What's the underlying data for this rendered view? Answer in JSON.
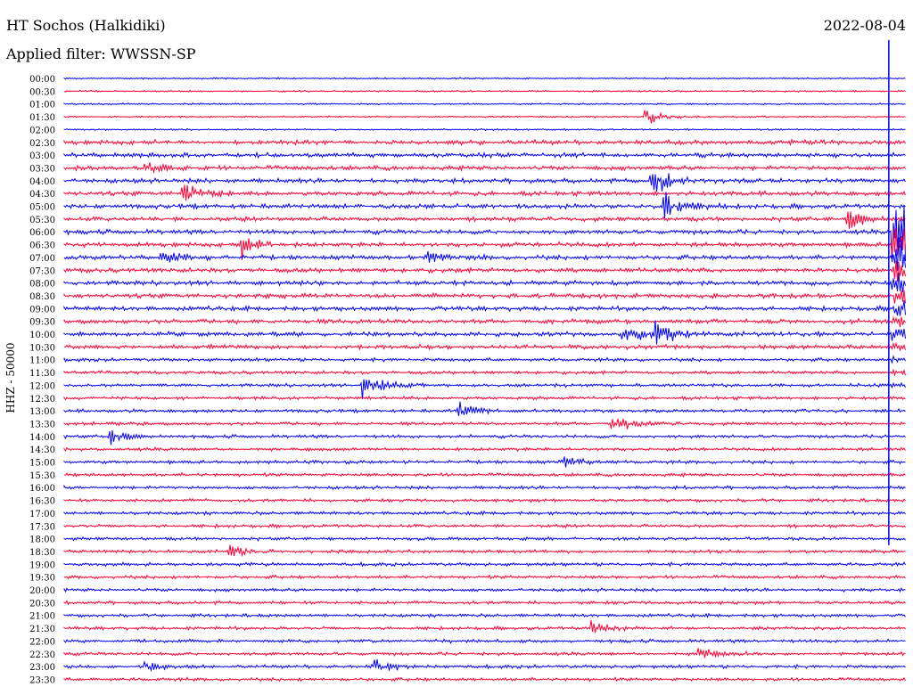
{
  "header": {
    "station": "HT Sochos (Halkidiki)",
    "date": "2022-08-04",
    "filter": "Applied filter: WWSSN-SP"
  },
  "chart_data": {
    "type": "line",
    "title": "HT Sochos (Halkidiki)",
    "ylabel": "HHZ - 50000",
    "x_range": [
      "00:00",
      "00:30"
    ],
    "rows": [
      "00:00",
      "00:30",
      "01:00",
      "01:30",
      "02:00",
      "02:30",
      "03:00",
      "03:30",
      "04:00",
      "04:30",
      "05:00",
      "05:30",
      "06:00",
      "06:30",
      "07:00",
      "07:30",
      "08:00",
      "08:30",
      "09:00",
      "09:30",
      "10:00",
      "10:30",
      "11:00",
      "11:30",
      "12:00",
      "12:30",
      "13:00",
      "13:30",
      "14:00",
      "14:30",
      "15:00",
      "15:30",
      "16:00",
      "16:30",
      "17:00",
      "17:30",
      "18:00",
      "18:30",
      "19:00",
      "19:30",
      "20:00",
      "20:30",
      "21:00",
      "21:30",
      "22:00",
      "22:30",
      "23:00",
      "23:30"
    ],
    "colors": [
      "#0000ff",
      "#ff0033"
    ],
    "bursts": [
      {
        "row": 3,
        "minute": 20.8,
        "amp": 6
      },
      {
        "row": 7,
        "minute": 3.0,
        "amp": 5
      },
      {
        "row": 8,
        "minute": 21.0,
        "amp": 14
      },
      {
        "row": 9,
        "minute": 4.3,
        "amp": 9
      },
      {
        "row": 10,
        "minute": 21.5,
        "amp": 12
      },
      {
        "row": 11,
        "minute": 28.0,
        "amp": 9
      },
      {
        "row": 13,
        "minute": 6.4,
        "amp": 10
      },
      {
        "row": 14,
        "minute": 3.5,
        "amp": 5
      },
      {
        "row": 14,
        "minute": 13.0,
        "amp": 5
      },
      {
        "row": 20,
        "minute": 20.0,
        "amp": 9
      },
      {
        "row": 20,
        "minute": 21.2,
        "amp": 12
      },
      {
        "row": 24,
        "minute": 10.7,
        "amp": 12
      },
      {
        "row": 26,
        "minute": 14.1,
        "amp": 8
      },
      {
        "row": 27,
        "minute": 19.6,
        "amp": 7
      },
      {
        "row": 28,
        "minute": 1.7,
        "amp": 6
      },
      {
        "row": 30,
        "minute": 17.8,
        "amp": 5
      },
      {
        "row": 37,
        "minute": 6.0,
        "amp": 5
      },
      {
        "row": 43,
        "minute": 18.9,
        "amp": 6
      },
      {
        "row": 45,
        "minute": 22.7,
        "amp": 5
      },
      {
        "row": 46,
        "minute": 3.0,
        "amp": 5
      },
      {
        "row": 46,
        "minute": 11.1,
        "amp": 6
      }
    ],
    "quake": {
      "start_row": 12,
      "minute": 30,
      "amp": 25
    },
    "spike": {
      "row": 0,
      "minute": 29.9,
      "top_row": -3,
      "bottom_row": 36.5
    }
  }
}
